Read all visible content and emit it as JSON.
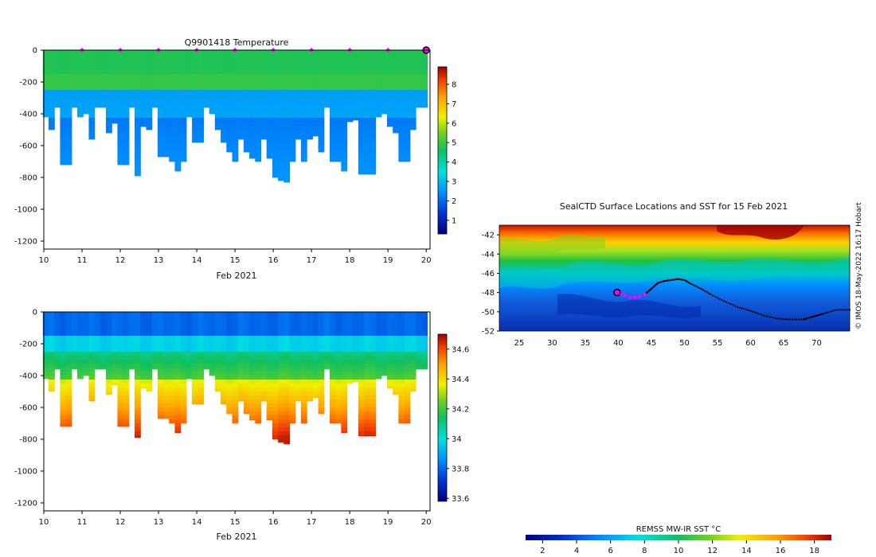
{
  "chart_data": [
    {
      "id": "temperature-section",
      "type": "heatmap",
      "title": "Q9901418  Temperature",
      "xlabel": "Feb 2021",
      "xlim": [
        10,
        20.1
      ],
      "ylim": [
        -1250,
        0
      ],
      "xticks": [
        10,
        11,
        12,
        13,
        14,
        15,
        16,
        17,
        18,
        19,
        20
      ],
      "yticks": [
        0,
        -200,
        -400,
        -600,
        -800,
        -1000,
        -1200
      ],
      "colorbar": {
        "min": 0.3,
        "max": 8.9,
        "ticks": [
          1,
          2,
          3,
          4,
          5,
          6,
          7,
          8
        ],
        "palette": "rainbow"
      },
      "surface_markers_day": [
        11,
        12,
        13,
        14,
        15,
        16,
        17,
        18,
        19
      ],
      "current_marker_day": 20,
      "profile_days": [
        10.05,
        10.2,
        10.35,
        10.5,
        10.65,
        10.8,
        10.95,
        11.1,
        11.25,
        11.4,
        11.55,
        11.7,
        11.85,
        12.0,
        12.15,
        12.3,
        12.45,
        12.6,
        12.75,
        12.9,
        13.05,
        13.2,
        13.35,
        13.5,
        13.65,
        13.8,
        13.95,
        14.1,
        14.25,
        14.4,
        14.55,
        14.7,
        14.85,
        15.0,
        15.15,
        15.3,
        15.45,
        15.6,
        15.75,
        15.9,
        16.05,
        16.2,
        16.35,
        16.5,
        16.65,
        16.8,
        16.95,
        17.1,
        17.25,
        17.4,
        17.55,
        17.7,
        17.85,
        18.0,
        18.15,
        18.3,
        18.45,
        18.6,
        18.75,
        18.9,
        19.05,
        19.2,
        19.35,
        19.5,
        19.65,
        19.8,
        19.95
      ],
      "profile_depths": [
        -420,
        -500,
        -360,
        -720,
        -720,
        -360,
        -420,
        -400,
        -560,
        -360,
        -360,
        -520,
        -460,
        -720,
        -720,
        -360,
        -790,
        -480,
        -500,
        -360,
        -670,
        -670,
        -700,
        -760,
        -700,
        -420,
        -580,
        -580,
        -360,
        -400,
        -500,
        -580,
        -640,
        -700,
        -560,
        -640,
        -680,
        -700,
        -560,
        -680,
        -800,
        -820,
        -830,
        -700,
        -560,
        -700,
        -560,
        -540,
        -640,
        -360,
        -700,
        -700,
        -760,
        -450,
        -440,
        -780,
        -780,
        -780,
        -420,
        -400,
        -480,
        -520,
        -700,
        -700,
        -500,
        -360,
        -360
      ],
      "surface_value": 4.8,
      "mid_value": 2.6,
      "deep_value": 2.3
    },
    {
      "id": "salinity-section",
      "type": "heatmap",
      "title": "",
      "xlabel": "Feb 2021",
      "xlim": [
        10,
        20.1
      ],
      "ylim": [
        -1250,
        0
      ],
      "xticks": [
        10,
        11,
        12,
        13,
        14,
        15,
        16,
        17,
        18,
        19,
        20
      ],
      "yticks": [
        0,
        -200,
        -400,
        -600,
        -800,
        -1000,
        -1200
      ],
      "colorbar": {
        "min": 33.58,
        "max": 34.7,
        "ticks": [
          33.6,
          33.8,
          34,
          34.2,
          34.4,
          34.6
        ],
        "palette": "rainbow"
      },
      "profile_days": [
        10.05,
        10.2,
        10.35,
        10.5,
        10.65,
        10.8,
        10.95,
        11.1,
        11.25,
        11.4,
        11.55,
        11.7,
        11.85,
        12.0,
        12.15,
        12.3,
        12.45,
        12.6,
        12.75,
        12.9,
        13.05,
        13.2,
        13.35,
        13.5,
        13.65,
        13.8,
        13.95,
        14.1,
        14.25,
        14.4,
        14.55,
        14.7,
        14.85,
        15.0,
        15.15,
        15.3,
        15.45,
        15.6,
        15.75,
        15.9,
        16.05,
        16.2,
        16.35,
        16.5,
        16.65,
        16.8,
        16.95,
        17.1,
        17.25,
        17.4,
        17.55,
        17.7,
        17.85,
        18.0,
        18.15,
        18.3,
        18.45,
        18.6,
        18.75,
        18.9,
        19.05,
        19.2,
        19.35,
        19.5,
        19.65,
        19.8,
        19.95
      ],
      "profile_depths": [
        -420,
        -500,
        -360,
        -720,
        -720,
        -360,
        -420,
        -400,
        -560,
        -360,
        -360,
        -520,
        -460,
        -720,
        -720,
        -360,
        -790,
        -480,
        -500,
        -360,
        -670,
        -670,
        -700,
        -760,
        -700,
        -420,
        -580,
        -580,
        -360,
        -400,
        -500,
        -580,
        -640,
        -700,
        -560,
        -640,
        -680,
        -700,
        -560,
        -680,
        -800,
        -820,
        -830,
        -700,
        -560,
        -700,
        -560,
        -540,
        -640,
        -360,
        -700,
        -700,
        -760,
        -450,
        -440,
        -780,
        -780,
        -780,
        -420,
        -400,
        -480,
        -520,
        -700,
        -700,
        -500,
        -360,
        -360
      ],
      "surface_value": 33.85,
      "mid_value": 34.1,
      "deep_value": 34.45
    },
    {
      "id": "sst-map",
      "type": "heatmap",
      "title": "SealCTD Surface Locations and SST for 15 Feb 2021",
      "xlim": [
        22,
        75
      ],
      "ylim": [
        -52,
        -41
      ],
      "xticks": [
        25,
        30,
        35,
        40,
        45,
        50,
        55,
        60,
        65,
        70
      ],
      "yticks": [
        -42,
        -44,
        -46,
        -48,
        -50,
        -52
      ],
      "colorbar": {
        "label": "REMSS MW-IR SST °C",
        "min": 1,
        "max": 19,
        "ticks": [
          2,
          4,
          6,
          8,
          10,
          12,
          14,
          16,
          18
        ],
        "palette": "rainbow"
      },
      "track_lon": [
        75,
        73,
        71,
        70,
        69,
        68,
        66,
        64,
        62,
        60,
        58,
        56,
        54,
        52.5,
        51,
        50,
        49,
        48,
        47,
        46,
        45.5,
        45,
        44.5,
        44
      ],
      "track_lat": [
        -49.8,
        -49.8,
        -50.2,
        -50.4,
        -50.6,
        -50.8,
        -50.8,
        -50.7,
        -50.4,
        -49.9,
        -49.5,
        -48.9,
        -48.2,
        -47.6,
        -47.1,
        -46.7,
        -46.6,
        -46.7,
        -46.8,
        -47.0,
        -47.3,
        -47.6,
        -47.9,
        -48.2
      ],
      "recent_lon": [
        44,
        43.2,
        42.5,
        41.8,
        41.0,
        40.4
      ],
      "recent_lat": [
        -48.2,
        -48.4,
        -48.5,
        -48.5,
        -48.3,
        -48.1
      ],
      "current_position": {
        "lon": 39.8,
        "lat": -48.0
      },
      "credit": "© IMOS 18-May-2022 16:17 Hobart"
    }
  ]
}
